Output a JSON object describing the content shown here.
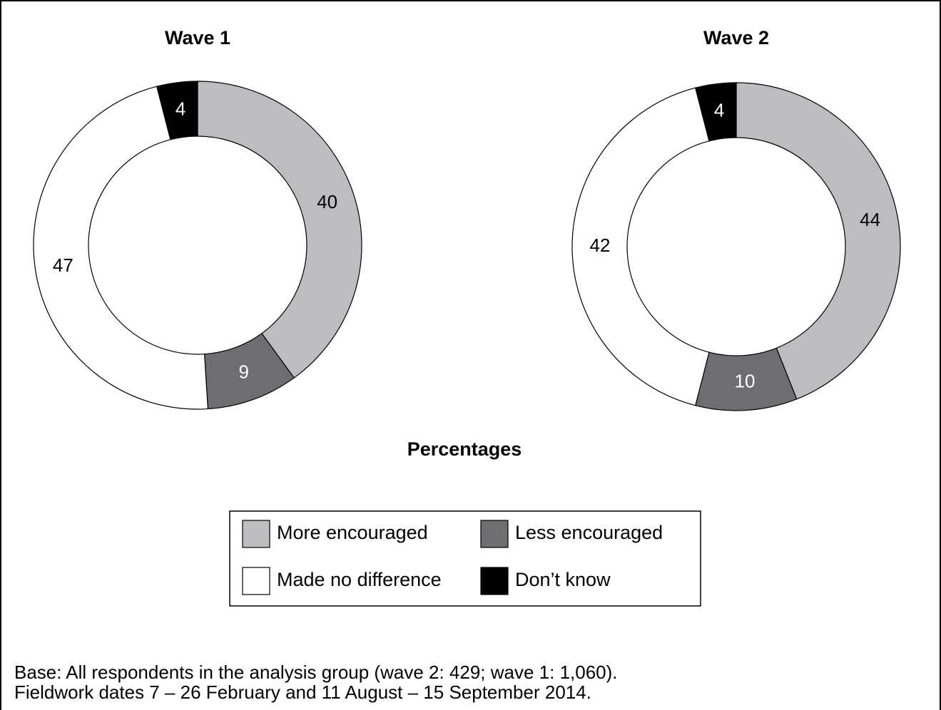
{
  "chart_data": [
    {
      "type": "donut",
      "title": "Wave 1",
      "categories": [
        "More encouraged",
        "Less encouraged",
        "Made no difference",
        "Don’t know"
      ],
      "values": [
        40,
        9,
        47,
        4
      ],
      "colors": [
        "#bcbdc0",
        "#6d6e71",
        "#ffffff",
        "#000000"
      ]
    },
    {
      "type": "donut",
      "title": "Wave 2",
      "categories": [
        "More encouraged",
        "Less encouraged",
        "Made no difference",
        "Don’t know"
      ],
      "values": [
        44,
        10,
        42,
        4
      ],
      "colors": [
        "#bcbdc0",
        "#6d6e71",
        "#ffffff",
        "#000000"
      ]
    }
  ],
  "caption": "Percentages",
  "notes": [
    "Base: All respondents in the analysis group (wave 2: 429; wave 1: 1,060).",
    "Fieldwork dates 7 – 26 February and 11 August – 15 September 2014."
  ]
}
